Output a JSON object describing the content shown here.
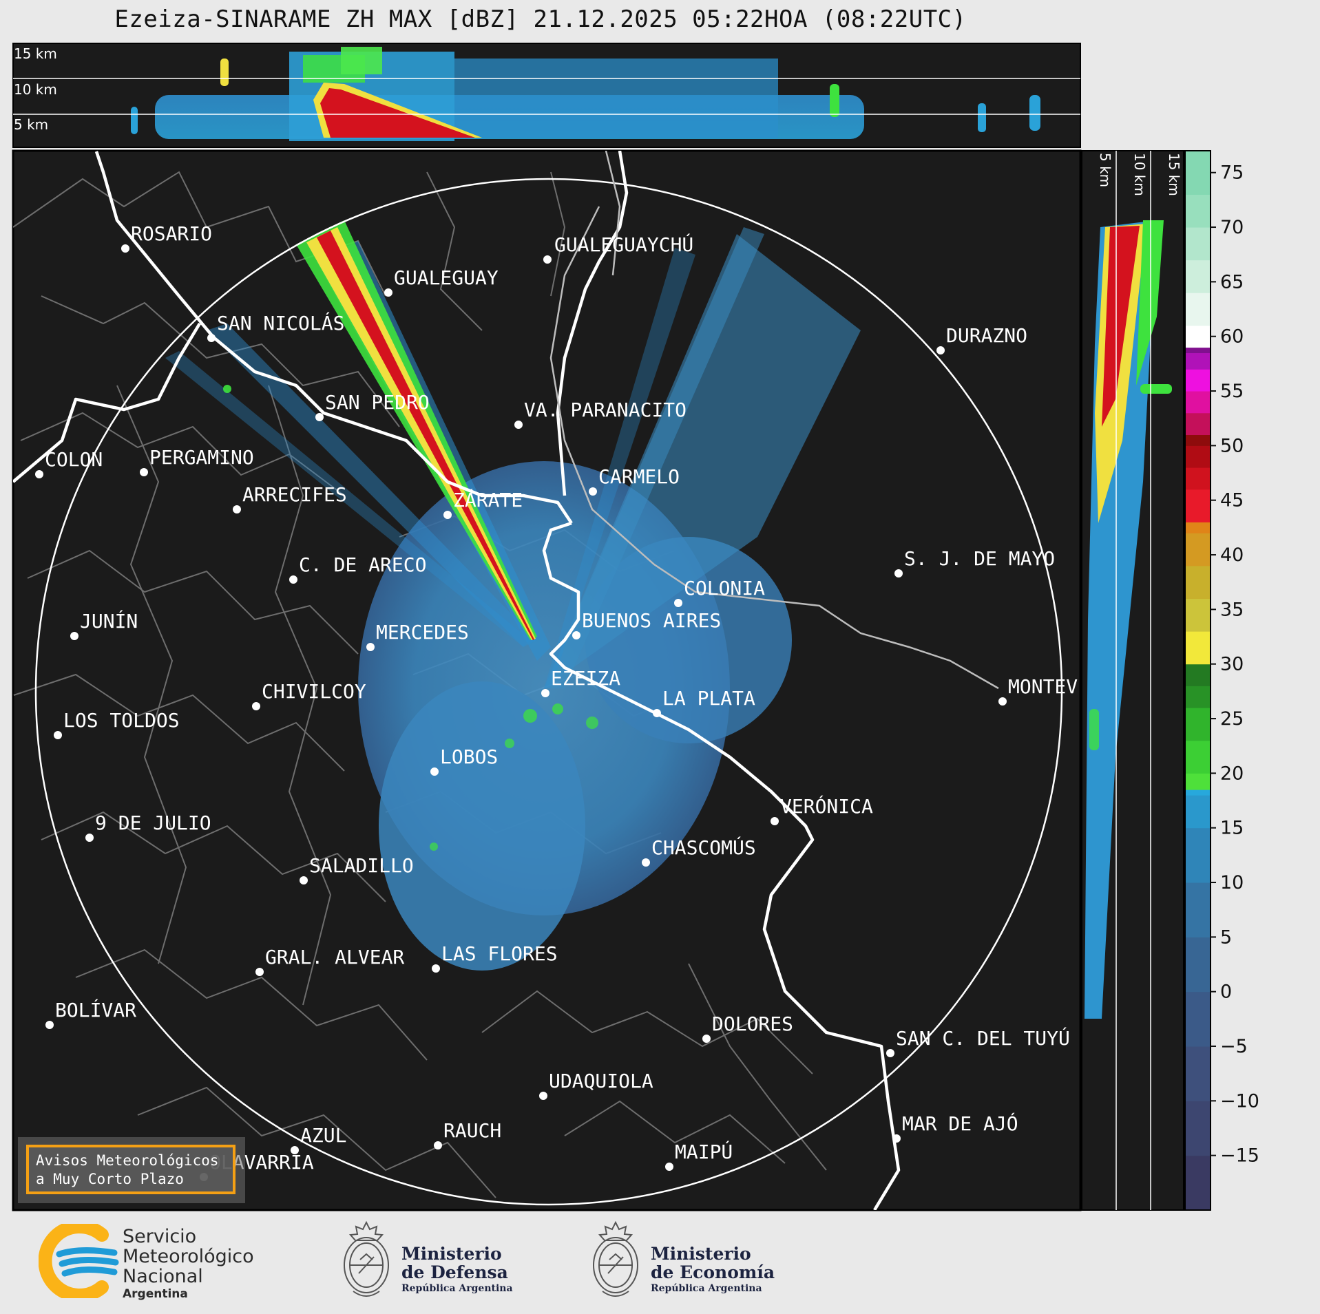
{
  "title": "Ezeiza-SINARAME ZH MAX [dBZ] 21.12.2025 05:22HOA (08:22UTC)",
  "top_panel": {
    "height_labels": [
      "15 km",
      "10 km",
      "5 km"
    ]
  },
  "side_panel": {
    "height_labels": [
      "5 km",
      "10 km",
      "15 km"
    ]
  },
  "colorbar": {
    "unit": "dBZ",
    "tick_labels": [
      "75",
      "70",
      "65",
      "60",
      "55",
      "50",
      "45",
      "40",
      "35",
      "30",
      "25",
      "20",
      "15",
      "10",
      "5",
      "0",
      "−5",
      "−10",
      "−15"
    ],
    "range": [
      -20,
      77
    ]
  },
  "cities": [
    {
      "name": "ROSARIO"
    },
    {
      "name": "GUALEGUAYCHÚ"
    },
    {
      "name": "GUALEGUAY"
    },
    {
      "name": "SAN NICOLÁS"
    },
    {
      "name": "DURAZNO"
    },
    {
      "name": "SAN PEDRO"
    },
    {
      "name": "VA. PARANACITO"
    },
    {
      "name": "COLON"
    },
    {
      "name": "PERGAMINO"
    },
    {
      "name": "CARMELO"
    },
    {
      "name": "ARRECIFES"
    },
    {
      "name": "ZÁRATE"
    },
    {
      "name": "S. J. DE MAYO"
    },
    {
      "name": "C. DE ARECO"
    },
    {
      "name": "COLONIA"
    },
    {
      "name": "JUNÍN"
    },
    {
      "name": "BUENOS AIRES"
    },
    {
      "name": "MERCEDES"
    },
    {
      "name": "MONTEV"
    },
    {
      "name": "EZEIZA"
    },
    {
      "name": "CHIVILCOY"
    },
    {
      "name": "LA PLATA"
    },
    {
      "name": "LOS TOLDOS"
    },
    {
      "name": "LOBOS"
    },
    {
      "name": "VERÓNICA"
    },
    {
      "name": "9 DE JULIO"
    },
    {
      "name": "CHASCOMÚS"
    },
    {
      "name": "SALADILLO"
    },
    {
      "name": "GRAL. ALVEAR"
    },
    {
      "name": "LAS FLORES"
    },
    {
      "name": "BOLÍVAR"
    },
    {
      "name": "DOLORES"
    },
    {
      "name": "SAN C. DEL TUYÚ"
    },
    {
      "name": "UDAQUIOLA"
    },
    {
      "name": "MAR DE AJÓ"
    },
    {
      "name": "AZUL"
    },
    {
      "name": "RAUCH"
    },
    {
      "name": "MAIPÚ"
    },
    {
      "name": "OLAVARRÍA"
    }
  ],
  "avisos": {
    "line1": "Avisos Meteorológicos",
    "line2": "a Muy Corto Plazo"
  },
  "footer": {
    "smn": {
      "line1": "Servicio",
      "line2": "Meteorológico",
      "line3": "Nacional",
      "line4": "Argentina"
    },
    "defensa": {
      "line1": "Ministerio",
      "line2": "de Defensa",
      "line3": "República Argentina"
    },
    "economia": {
      "line1": "Ministerio",
      "line2": "de Economía",
      "line3": "República Argentina"
    }
  },
  "colors": {
    "map_background": "#1b1b1b",
    "page_background": "#e9e9e9",
    "echo_main": "#3a8ec4",
    "echo_strong_red": "#d4121e",
    "echo_green": "#3ee23e",
    "accent_orange": "#f5a014",
    "smn_blue": "#1f9bd7",
    "smn_orange": "#fbb317"
  }
}
